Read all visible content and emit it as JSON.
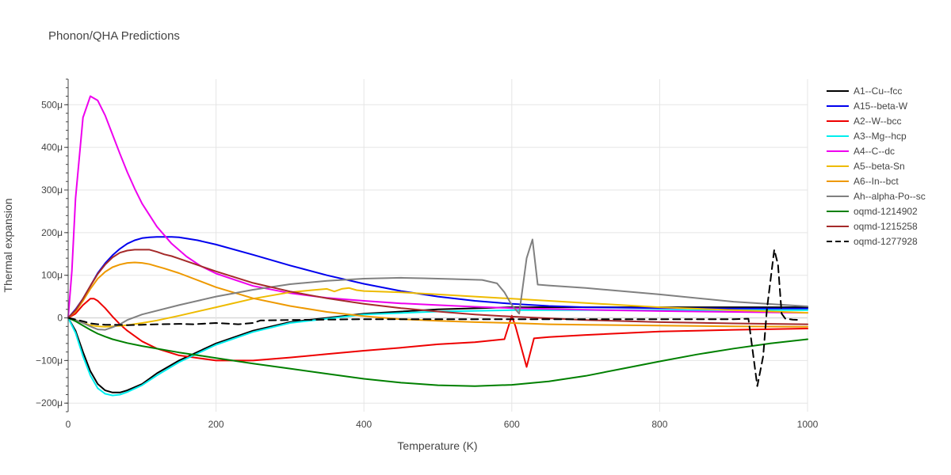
{
  "chart_data": {
    "type": "line",
    "title": "Phonon/QHA Predictions",
    "xlabel": "Temperature (K)",
    "ylabel": "Thermal expansion",
    "xlim": [
      0,
      1000
    ],
    "ylim": [
      -0.00022,
      0.00056
    ],
    "x_ticks": [
      0,
      200,
      400,
      600,
      800,
      1000
    ],
    "x_tick_labels": [
      "0",
      "200",
      "400",
      "600",
      "800",
      "1000"
    ],
    "y_ticks": [
      -0.0002,
      -0.0001,
      0,
      0.0001,
      0.0002,
      0.0003,
      0.0004,
      0.0005
    ],
    "y_tick_labels": [
      "−200μ",
      "−100μ",
      "0",
      "100μ",
      "200μ",
      "300μ",
      "400μ",
      "500μ"
    ],
    "grid": true,
    "legend_position": "right",
    "series": [
      {
        "name": "A1--Cu--fcc",
        "color": "#000000",
        "dash": "solid",
        "x": [
          0,
          10,
          20,
          30,
          40,
          50,
          60,
          70,
          80,
          100,
          120,
          150,
          200,
          250,
          300,
          400,
          500,
          600,
          700,
          800,
          900,
          1000
        ],
        "y": [
          0,
          -3e-05,
          -8e-05,
          -0.000125,
          -0.000155,
          -0.00017,
          -0.000175,
          -0.000175,
          -0.00017,
          -0.000155,
          -0.00013,
          -0.0001,
          -6e-05,
          -3e-05,
          -1e-05,
          1e-05,
          2e-05,
          2.5e-05,
          2.5e-05,
          2.5e-05,
          2.5e-05,
          2.5e-05
        ]
      },
      {
        "name": "A15--beta-W",
        "color": "#0000ee",
        "dash": "solid",
        "x": [
          0,
          10,
          20,
          30,
          40,
          50,
          60,
          70,
          80,
          90,
          100,
          110,
          120,
          130,
          140,
          150,
          175,
          200,
          250,
          300,
          350,
          400,
          450,
          500,
          550,
          600,
          650,
          700,
          800,
          900,
          1000
        ],
        "y": [
          0,
          2e-05,
          4.5e-05,
          7.5e-05,
          0.000105,
          0.000128,
          0.000147,
          0.000162,
          0.000174,
          0.000182,
          0.000187,
          0.000189,
          0.00019,
          0.00019,
          0.00019,
          0.000189,
          0.000182,
          0.000172,
          0.000148,
          0.000123,
          0.0001,
          8e-05,
          6.3e-05,
          5e-05,
          4e-05,
          3.3e-05,
          2.8e-05,
          2.5e-05,
          2.3e-05,
          2.2e-05,
          2.2e-05
        ]
      },
      {
        "name": "A2--W--bcc",
        "color": "#ee0000",
        "dash": "solid",
        "x": [
          0,
          10,
          20,
          30,
          35,
          40,
          50,
          60,
          70,
          80,
          100,
          120,
          150,
          200,
          250,
          300,
          350,
          400,
          450,
          500,
          550,
          590,
          600,
          605,
          620,
          630,
          650,
          700,
          800,
          900,
          1000
        ],
        "y": [
          0,
          1e-05,
          3e-05,
          4.5e-05,
          4.5e-05,
          4e-05,
          2.3e-05,
          3e-06,
          -1.5e-05,
          -3e-05,
          -5.5e-05,
          -7.2e-05,
          -8.8e-05,
          -0.0001,
          -0.0001,
          -9.3e-05,
          -8.5e-05,
          -7.7e-05,
          -7e-05,
          -6.2e-05,
          -5.7e-05,
          -5e-05,
          5e-06,
          -2e-05,
          -0.000115,
          -4.8e-05,
          -4.5e-05,
          -4e-05,
          -3.2e-05,
          -2.8e-05,
          -2.5e-05
        ]
      },
      {
        "name": "A3--Mg--hcp",
        "color": "#00eeee",
        "dash": "solid",
        "x": [
          0,
          10,
          20,
          30,
          40,
          50,
          60,
          70,
          80,
          100,
          120,
          150,
          200,
          250,
          300,
          400,
          500,
          600,
          700,
          800,
          900,
          1000
        ],
        "y": [
          0,
          -3.5e-05,
          -9e-05,
          -0.000135,
          -0.000165,
          -0.000178,
          -0.000182,
          -0.00018,
          -0.000174,
          -0.000158,
          -0.000135,
          -0.000104,
          -6.3e-05,
          -3.3e-05,
          -1.2e-05,
          8e-06,
          1.5e-05,
          1.8e-05,
          1.8e-05,
          1.8e-05,
          1.8e-05,
          1.8e-05
        ]
      },
      {
        "name": "A4--C--dc",
        "color": "#ee00ee",
        "dash": "solid",
        "x": [
          0,
          5,
          10,
          20,
          30,
          40,
          50,
          60,
          70,
          80,
          90,
          100,
          120,
          140,
          160,
          180,
          200,
          250,
          300,
          350,
          400,
          450,
          500,
          550,
          600,
          700,
          800,
          900,
          1000
        ],
        "y": [
          0,
          0.00011,
          0.00028,
          0.00047,
          0.00052,
          0.00051,
          0.000475,
          0.00043,
          0.000385,
          0.000342,
          0.000303,
          0.000268,
          0.000214,
          0.000174,
          0.000144,
          0.000121,
          0.000104,
          7.5e-05,
          5.8e-05,
          4.7e-05,
          4e-05,
          3.4e-05,
          3e-05,
          2.6e-05,
          2.3e-05,
          1.9e-05,
          1.6e-05,
          1.4e-05,
          1.2e-05
        ]
      },
      {
        "name": "A5--beta-Sn",
        "color": "#eebb00",
        "dash": "solid",
        "x": [
          0,
          10,
          20,
          30,
          40,
          50,
          60,
          80,
          100,
          120,
          150,
          200,
          250,
          300,
          330,
          350,
          360,
          370,
          380,
          390,
          400,
          450,
          500,
          550,
          600,
          700,
          800,
          900,
          1000
        ],
        "y": [
          0,
          -5e-06,
          -1.2e-05,
          -1.7e-05,
          -2e-05,
          -2.1e-05,
          -2e-05,
          -1.7e-05,
          -1.2e-05,
          -6e-06,
          5e-06,
          2.5e-05,
          4.5e-05,
          6e-05,
          6.5e-05,
          6.8e-05,
          6.2e-05,
          6.8e-05,
          7e-05,
          6.5e-05,
          6.3e-05,
          6e-05,
          5.5e-05,
          5e-05,
          4.5e-05,
          3.5e-05,
          2.5e-05,
          1.8e-05,
          1.2e-05
        ]
      },
      {
        "name": "A6--In--bct",
        "color": "#ee9900",
        "dash": "solid",
        "x": [
          0,
          10,
          20,
          30,
          40,
          50,
          60,
          70,
          80,
          90,
          100,
          110,
          120,
          130,
          150,
          200,
          250,
          300,
          350,
          400,
          450,
          500,
          550,
          600,
          650,
          700,
          800,
          900,
          1000
        ],
        "y": [
          0,
          1.5e-05,
          4e-05,
          6.8e-05,
          9.2e-05,
          0.000108,
          0.000119,
          0.000125,
          0.000129,
          0.00013,
          0.000129,
          0.000126,
          0.000121,
          0.000116,
          0.000105,
          7.2e-05,
          4.6e-05,
          2.8e-05,
          1.4e-05,
          4e-06,
          -3e-06,
          -7e-06,
          -1e-05,
          -1.2e-05,
          -1.5e-05,
          -1.6e-05,
          -1.8e-05,
          -2e-05,
          -2.1e-05
        ]
      },
      {
        "name": "Ah--alpha-Po--sc",
        "color": "#808080",
        "dash": "solid",
        "x": [
          0,
          10,
          20,
          30,
          40,
          50,
          60,
          70,
          80,
          100,
          150,
          200,
          250,
          300,
          350,
          400,
          450,
          480,
          520,
          560,
          580,
          590,
          600,
          610,
          620,
          628,
          635,
          650,
          700,
          800,
          900,
          1000
        ],
        "y": [
          0,
          -5e-06,
          -1.2e-05,
          -2e-05,
          -2.7e-05,
          -2.8e-05,
          -2.2e-05,
          -1.5e-05,
          -5e-06,
          8e-06,
          3e-05,
          5e-05,
          6.6e-05,
          7.9e-05,
          8.7e-05,
          9.2e-05,
          9.4e-05,
          9.3e-05,
          9.1e-05,
          8.9e-05,
          8.1e-05,
          6e-05,
          3e-05,
          1e-05,
          0.00014,
          0.000184,
          7.8e-05,
          7.6e-05,
          7e-05,
          5.5e-05,
          3.8e-05,
          2.7e-05
        ]
      },
      {
        "name": "oqmd-1214902",
        "color": "#008000",
        "dash": "solid",
        "x": [
          0,
          10,
          20,
          30,
          40,
          50,
          60,
          80,
          100,
          150,
          200,
          250,
          300,
          350,
          400,
          450,
          500,
          550,
          600,
          650,
          700,
          750,
          800,
          850,
          900,
          950,
          1000
        ],
        "y": [
          0,
          -8e-06,
          -1.8e-05,
          -2.8e-05,
          -3.7e-05,
          -4.4e-05,
          -5e-05,
          -5.9e-05,
          -6.6e-05,
          -8.1e-05,
          -9.4e-05,
          -0.000107,
          -0.000119,
          -0.000131,
          -0.000143,
          -0.000152,
          -0.000158,
          -0.00016,
          -0.000157,
          -0.000149,
          -0.000136,
          -0.000119,
          -0.000102,
          -8.6e-05,
          -7.2e-05,
          -6e-05,
          -5e-05
        ]
      },
      {
        "name": "oqmd-1215258",
        "color": "#a52a2a",
        "dash": "solid",
        "x": [
          0,
          10,
          20,
          30,
          40,
          50,
          60,
          70,
          80,
          90,
          100,
          110,
          120,
          130,
          140,
          150,
          200,
          250,
          300,
          350,
          400,
          450,
          500,
          550,
          600,
          700,
          800,
          900,
          1000
        ],
        "y": [
          0,
          1.8e-05,
          4.5e-05,
          7.5e-05,
          0.000103,
          0.000125,
          0.000142,
          0.000153,
          0.000158,
          0.00016,
          0.00016,
          0.00016,
          0.000155,
          0.000149,
          0.000145,
          0.000139,
          0.000109,
          8.2e-05,
          6.2e-05,
          4.6e-05,
          3.3e-05,
          2.3e-05,
          1.5e-05,
          8e-06,
          3e-06,
          -5e-06,
          -1e-05,
          -1.3e-05,
          -1.5e-05
        ]
      },
      {
        "name": "oqmd-1277928",
        "color": "#000000",
        "dash": "dash",
        "x": [
          0,
          20,
          30,
          40,
          50,
          60,
          80,
          100,
          120,
          150,
          170,
          200,
          230,
          250,
          260,
          300,
          400,
          500,
          600,
          700,
          800,
          900,
          920,
          932,
          940,
          945,
          955,
          960,
          965,
          970,
          980,
          990
        ],
        "y": [
          0,
          -8e-06,
          -1.3e-05,
          -1.5e-05,
          -1.6e-05,
          -1.6e-05,
          -1.7e-05,
          -1.6e-05,
          -1.5e-05,
          -1.4e-05,
          -1.5e-05,
          -1.2e-05,
          -1.5e-05,
          -1.2e-05,
          -6e-06,
          -5e-06,
          -3e-06,
          -3e-06,
          -3e-06,
          -3e-06,
          -3e-06,
          -3e-06,
          -2e-06,
          -0.00016,
          -9e-05,
          2e-05,
          0.00016,
          0.000125,
          1e-05,
          -2e-06,
          -4e-06,
          -5e-06
        ]
      }
    ]
  }
}
